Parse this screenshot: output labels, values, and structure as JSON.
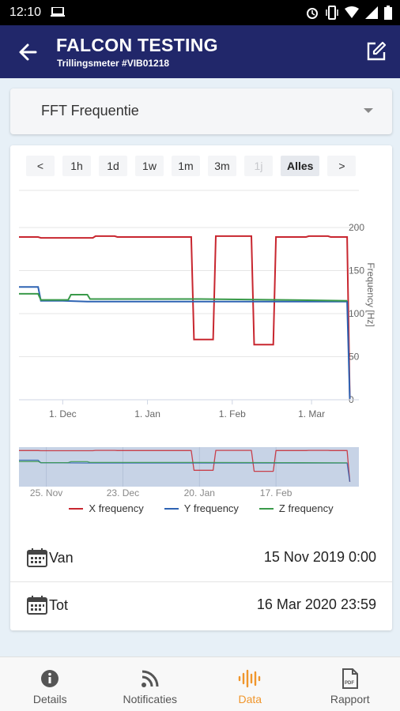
{
  "status_bar": {
    "time": "12:10"
  },
  "app_bar": {
    "title": "FALCON TESTING",
    "subtitle": "Trillingsmeter #VIB01218"
  },
  "selector": {
    "value": "FFT Frequentie"
  },
  "range_buttons": [
    {
      "label": "<",
      "state": "normal"
    },
    {
      "label": "1h",
      "state": "normal"
    },
    {
      "label": "1d",
      "state": "normal"
    },
    {
      "label": "1w",
      "state": "normal"
    },
    {
      "label": "1m",
      "state": "normal"
    },
    {
      "label": "3m",
      "state": "normal"
    },
    {
      "label": "1j",
      "state": "disabled"
    },
    {
      "label": "Alles",
      "state": "selected"
    },
    {
      "label": ">",
      "state": "normal"
    }
  ],
  "colors": {
    "x": "#c8262f",
    "y": "#2e63b3",
    "z": "#3a9a4a",
    "accent": "#f0962c",
    "appbar": "#21276a"
  },
  "chart_data": {
    "type": "line",
    "ylabel": "Frequency [Hz]",
    "ylim": [
      0,
      200
    ],
    "yticks": [
      "0",
      "50",
      "100",
      "150",
      "200"
    ],
    "xticks": [
      "1. Dec",
      "1. Jan",
      "1. Feb",
      "1. Mar"
    ],
    "x_range": [
      "2019-11-15",
      "2020-03-16"
    ],
    "series": [
      {
        "name": "X frequency",
        "color": "#c8262f",
        "points": [
          [
            "2019-11-15",
            189
          ],
          [
            "2019-11-22",
            189
          ],
          [
            "2019-11-23",
            188
          ],
          [
            "2019-12-12",
            188
          ],
          [
            "2019-12-13",
            190
          ],
          [
            "2019-12-20",
            190
          ],
          [
            "2019-12-21",
            189
          ],
          [
            "2020-01-17",
            189
          ],
          [
            "2020-01-18",
            70
          ],
          [
            "2020-01-25",
            70
          ],
          [
            "2020-01-26",
            190
          ],
          [
            "2020-02-08",
            190
          ],
          [
            "2020-02-09",
            64
          ],
          [
            "2020-02-16",
            64
          ],
          [
            "2020-02-17",
            189
          ],
          [
            "2020-02-28",
            189
          ],
          [
            "2020-02-29",
            190
          ],
          [
            "2020-03-07",
            190
          ],
          [
            "2020-03-08",
            189
          ],
          [
            "2020-03-14",
            189
          ],
          [
            "2020-03-15",
            1
          ]
        ]
      },
      {
        "name": "Y frequency",
        "color": "#2e63b3",
        "points": [
          [
            "2019-11-15",
            131
          ],
          [
            "2019-11-22",
            131
          ],
          [
            "2019-11-23",
            115
          ],
          [
            "2019-12-01",
            115
          ],
          [
            "2019-12-10",
            114
          ],
          [
            "2020-01-15",
            114
          ],
          [
            "2020-02-15",
            114
          ],
          [
            "2020-03-14",
            114
          ],
          [
            "2020-03-15",
            1
          ]
        ]
      },
      {
        "name": "Z frequency",
        "color": "#3a9a4a",
        "points": [
          [
            "2019-11-15",
            123
          ],
          [
            "2019-11-22",
            123
          ],
          [
            "2019-11-23",
            116
          ],
          [
            "2019-12-03",
            116
          ],
          [
            "2019-12-04",
            122
          ],
          [
            "2019-12-10",
            122
          ],
          [
            "2019-12-11",
            117
          ],
          [
            "2020-01-20",
            117
          ],
          [
            "2020-02-20",
            116
          ],
          [
            "2020-03-14",
            115
          ]
        ]
      }
    ],
    "navigator": {
      "xticks": [
        "25. Nov",
        "23. Dec",
        "20. Jan",
        "17. Feb"
      ]
    }
  },
  "legend": [
    "X frequency",
    "Y frequency",
    "Z frequency"
  ],
  "date_range": {
    "from_label": "Van",
    "from_value": "15 Nov 2019 0:00",
    "to_label": "Tot",
    "to_value": "16 Mar 2020 23:59"
  },
  "bottom_nav": [
    {
      "label": "Details",
      "icon": "info-icon"
    },
    {
      "label": "Notificaties",
      "icon": "rss-icon"
    },
    {
      "label": "Data",
      "icon": "waveform-icon",
      "active": true
    },
    {
      "label": "Rapport",
      "icon": "pdf-icon"
    }
  ]
}
